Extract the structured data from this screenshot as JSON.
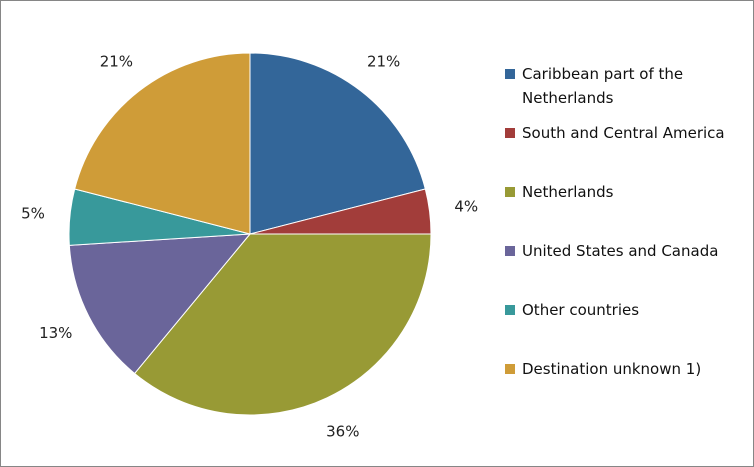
{
  "chart_data": {
    "type": "pie",
    "title": "",
    "slices": [
      {
        "label": "Caribbean part of the Netherlands",
        "value": 21,
        "display": "21%",
        "color": "#336699"
      },
      {
        "label": "South and Central America",
        "value": 4,
        "display": "4%",
        "color": "#A23D3A"
      },
      {
        "label": "Netherlands",
        "value": 36,
        "display": "36%",
        "color": "#989A35"
      },
      {
        "label": "United States and Canada",
        "value": 13,
        "display": "13%",
        "color": "#6A659A"
      },
      {
        "label": "Other countries",
        "value": 5,
        "display": "5%",
        "color": "#38999B"
      },
      {
        "label": "Destination unknown 1)",
        "value": 21,
        "display": "21%",
        "color": "#CF9C38"
      }
    ],
    "legend_position": "right"
  }
}
